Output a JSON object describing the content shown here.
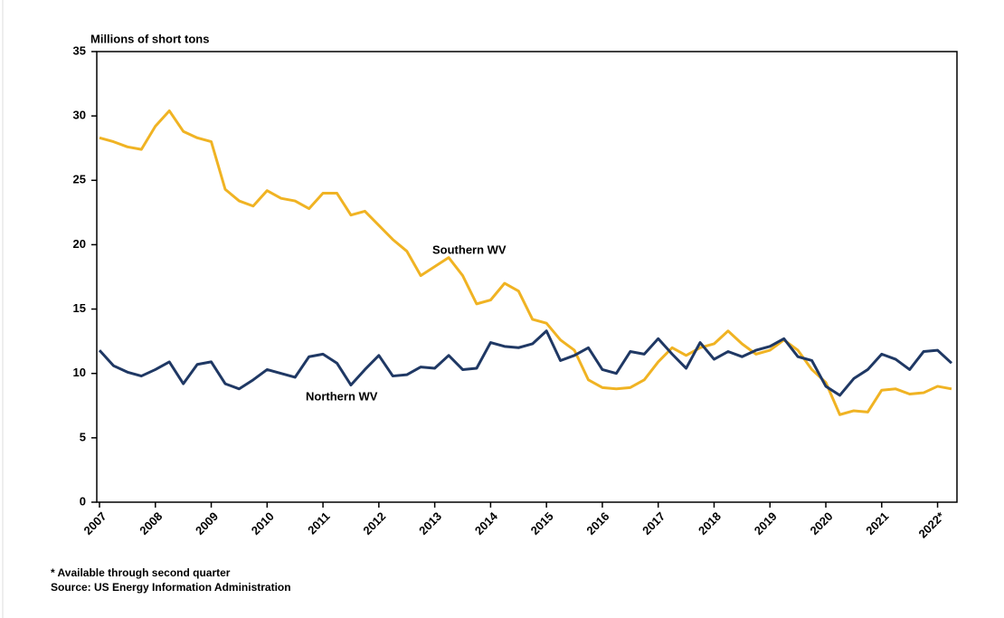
{
  "chart_data": {
    "type": "line",
    "y_label": "Millions of short tons",
    "categories": [
      "2007",
      null,
      null,
      null,
      "2008",
      null,
      null,
      null,
      "2009",
      null,
      null,
      null,
      "2010",
      null,
      null,
      null,
      "2011",
      null,
      null,
      null,
      "2012",
      null,
      null,
      null,
      "2013",
      null,
      null,
      null,
      "2014",
      null,
      null,
      null,
      "2015",
      null,
      null,
      null,
      "2016",
      null,
      null,
      null,
      "2017",
      null,
      null,
      null,
      "2018",
      null,
      null,
      null,
      "2019",
      null,
      null,
      null,
      "2020",
      null,
      null,
      null,
      "2021",
      null,
      null,
      null,
      "2022*",
      null
    ],
    "series": [
      {
        "name": "Southern WV",
        "color": "#f0b323",
        "values": [
          28.3,
          28.0,
          27.6,
          27.4,
          29.2,
          30.4,
          28.8,
          28.3,
          28.0,
          24.3,
          23.4,
          23.0,
          24.2,
          23.6,
          23.4,
          22.8,
          24.0,
          24.0,
          22.3,
          22.6,
          21.5,
          20.4,
          19.5,
          17.6,
          18.3,
          19.0,
          17.6,
          15.4,
          15.7,
          17.0,
          16.4,
          14.2,
          13.9,
          12.6,
          11.8,
          9.5,
          8.9,
          8.8,
          8.9,
          9.5,
          10.9,
          12.0,
          11.4,
          12.0,
          12.3,
          13.3,
          12.3,
          11.5,
          11.8,
          12.6,
          11.8,
          10.3,
          9.3,
          6.8,
          7.1,
          7.0,
          8.7,
          8.8,
          8.4,
          8.5,
          9.0,
          8.8
        ]
      },
      {
        "name": "Northern WV",
        "color": "#1f3864",
        "values": [
          11.8,
          10.6,
          10.1,
          9.8,
          10.3,
          10.9,
          9.2,
          10.7,
          10.9,
          9.2,
          8.8,
          9.5,
          10.3,
          10.0,
          9.7,
          11.3,
          11.5,
          10.8,
          9.1,
          10.3,
          11.4,
          9.8,
          9.9,
          10.5,
          10.4,
          11.4,
          10.3,
          10.4,
          12.4,
          12.1,
          12.0,
          12.3,
          13.3,
          11.0,
          11.4,
          12.0,
          10.3,
          10.0,
          11.7,
          11.5,
          12.7,
          11.5,
          10.4,
          12.4,
          11.1,
          11.7,
          11.3,
          11.8,
          12.1,
          12.7,
          11.3,
          11.0,
          9.0,
          8.3,
          9.6,
          10.3,
          11.5,
          11.1,
          10.3,
          11.7,
          11.8,
          10.8
        ]
      }
    ],
    "ylim": [
      0,
      35
    ],
    "yticks": [
      0,
      5,
      10,
      15,
      20,
      25,
      30,
      35
    ],
    "footnotes": [
      "* Available through  second quarter",
      "Source: US Energy Information Administration"
    ]
  }
}
